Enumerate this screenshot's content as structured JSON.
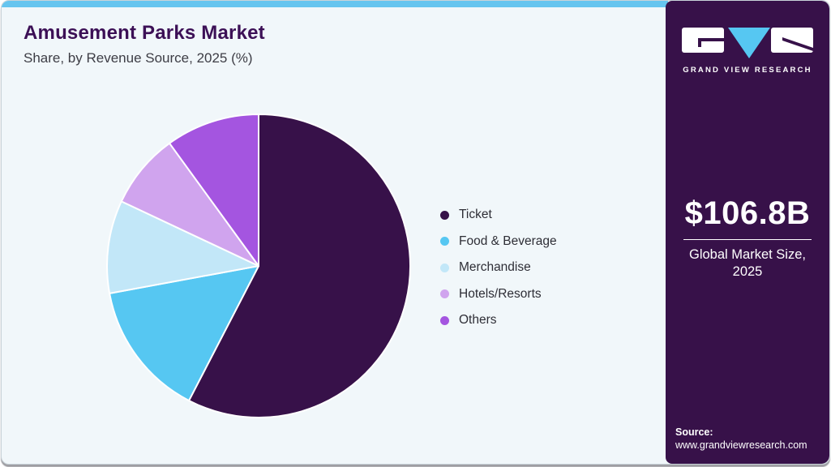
{
  "header": {
    "title": "Amusement Parks Market",
    "subtitle": "Share, by Revenue Source, 2025 (%)"
  },
  "sidebar": {
    "logo_name": "GRAND VIEW RESEARCH",
    "market_size": "$106.8B",
    "market_label_line1": "Global Market Size,",
    "market_label_line2": "2025",
    "source_label": "Source:",
    "source_url": "www.grandviewresearch.com",
    "bg_color": "#371149",
    "logo_blue": "#56c7f2"
  },
  "chart_data": {
    "type": "pie",
    "title": "Amusement Parks Market Share, by Revenue Source, 2025 (%)",
    "categories": [
      "Ticket",
      "Food & Beverage",
      "Merchandise",
      "Hotels/Resorts",
      "Others"
    ],
    "values": [
      57.6,
      14.5,
      9.9,
      8.0,
      10.0
    ],
    "colors": [
      "#371149",
      "#56c7f2",
      "#c2e7f8",
      "#d0a4ee",
      "#a455e0"
    ],
    "start_angle_deg": 0,
    "direction": "clockwise",
    "legend_position": "right",
    "slice_gap_color": "#ffffff"
  },
  "theme": {
    "topbar_color": "#66c5ef",
    "main_bg": "#f1f7fa",
    "title_color": "#3c1056"
  }
}
